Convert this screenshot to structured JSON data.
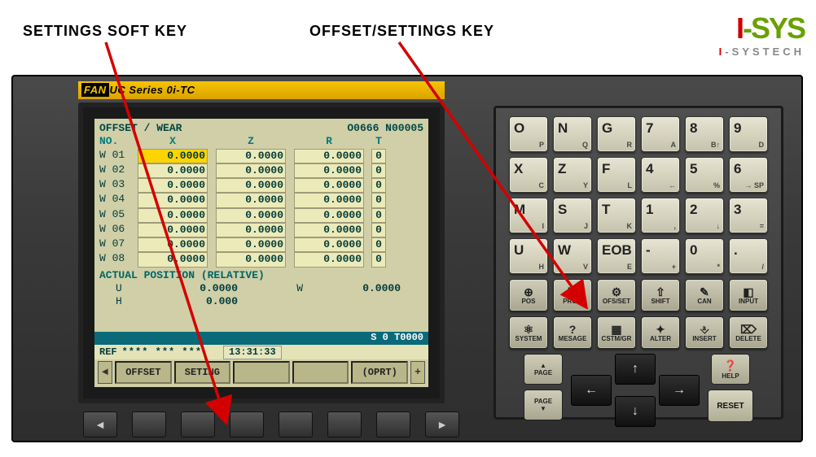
{
  "annotations": {
    "left": "SETTINGS SOFT KEY",
    "right": "OFFSET/SETTINGS KEY"
  },
  "logo": {
    "i": "I",
    "dash": "-",
    "sys": "SYS",
    "sub_i": "I",
    "sub_rest": "-SYSTECH"
  },
  "brand": {
    "prefix": "FAN",
    "boxed": "UC",
    "rest": " Series 0i-TC"
  },
  "screen": {
    "title_left": "OFFSET / WEAR",
    "title_right": "O0666 N00005",
    "columns": {
      "no": "NO.",
      "x": "X",
      "z": "Z",
      "r": "R",
      "t": "T"
    },
    "rows": [
      {
        "no": "W 01",
        "x": "0.0000",
        "z": "0.0000",
        "r": "0.0000",
        "t": "0",
        "hl": true
      },
      {
        "no": "W 02",
        "x": "0.0000",
        "z": "0.0000",
        "r": "0.0000",
        "t": "0"
      },
      {
        "no": "W 03",
        "x": "0.0000",
        "z": "0.0000",
        "r": "0.0000",
        "t": "0"
      },
      {
        "no": "W 04",
        "x": "0.0000",
        "z": "0.0000",
        "r": "0.0000",
        "t": "0"
      },
      {
        "no": "W 05",
        "x": "0.0000",
        "z": "0.0000",
        "r": "0.0000",
        "t": "0"
      },
      {
        "no": "W 06",
        "x": "0.0000",
        "z": "0.0000",
        "r": "0.0000",
        "t": "0"
      },
      {
        "no": "W 07",
        "x": "0.0000",
        "z": "0.0000",
        "r": "0.0000",
        "t": "0"
      },
      {
        "no": "W 08",
        "x": "0.0000",
        "z": "0.0000",
        "r": "0.0000",
        "t": "0"
      }
    ],
    "actual_title": "ACTUAL POSITION  (RELATIVE)",
    "pos": {
      "U": "0.0000",
      "W": "0.0000",
      "H": "0.000"
    },
    "bluebar": "S     0 T0000",
    "status": {
      "mode": "REF",
      "stars": "**** *** ***",
      "time": "13:31:33"
    },
    "softkeys": [
      "OFFSET",
      "SETING",
      "",
      "",
      "(OPRT)"
    ]
  },
  "keypad": {
    "rows": [
      [
        {
          "m": "O",
          "s": "P"
        },
        {
          "m": "N",
          "s": "Q"
        },
        {
          "m": "G",
          "s": "R"
        },
        {
          "m": "7",
          "s": "A"
        },
        {
          "m": "8",
          "s": "B↑"
        },
        {
          "m": "9",
          "s": "D"
        }
      ],
      [
        {
          "m": "X",
          "s": "C"
        },
        {
          "m": "Z",
          "s": "Y"
        },
        {
          "m": "F",
          "s": "L"
        },
        {
          "m": "4",
          "s": "←"
        },
        {
          "m": "5",
          "s": "%"
        },
        {
          "m": "6",
          "s": "→ SP"
        }
      ],
      [
        {
          "m": "M",
          "s": "I"
        },
        {
          "m": "S",
          "s": "J"
        },
        {
          "m": "T",
          "s": "K"
        },
        {
          "m": "1",
          "s": ","
        },
        {
          "m": "2",
          "s": "↓"
        },
        {
          "m": "3",
          "s": "="
        }
      ],
      [
        {
          "m": "U",
          "s": "H"
        },
        {
          "m": "W",
          "s": "V"
        },
        {
          "m": "EOB",
          "s": "E"
        },
        {
          "m": "-",
          "s": "+"
        },
        {
          "m": "0",
          "s": "*"
        },
        {
          "m": ".",
          "s": "/"
        }
      ]
    ],
    "fn1": [
      {
        "ic": "⊕",
        "t": "POS"
      },
      {
        "ic": "☰",
        "t": "PROG"
      },
      {
        "ic": "⚙",
        "t": "OFS/SET"
      },
      {
        "ic": "⇧",
        "t": "SHIFT"
      },
      {
        "ic": "✎",
        "t": "CAN"
      },
      {
        "ic": "◧",
        "t": "INPUT"
      }
    ],
    "fn2": [
      {
        "ic": "⚛",
        "t": "SYSTEM"
      },
      {
        "ic": "?",
        "t": "MESAGE"
      },
      {
        "ic": "▦",
        "t": "CSTM/GR"
      },
      {
        "ic": "✦",
        "t": "ALTER"
      },
      {
        "ic": "⎀",
        "t": "INSERT"
      },
      {
        "ic": "⌦",
        "t": "DELETE"
      }
    ],
    "page_up": "PAGE",
    "page_dn": "PAGE",
    "help": "HELP",
    "reset": "RESET"
  },
  "colors": {
    "arrow": "#d40000",
    "highlight": "#ffd400",
    "crt_bg": "#d0cfa7",
    "bluebar": "#0a6a7a"
  }
}
